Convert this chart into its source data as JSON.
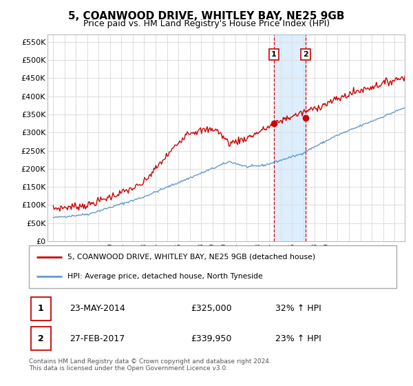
{
  "title": "5, COANWOOD DRIVE, WHITLEY BAY, NE25 9GB",
  "subtitle": "Price paid vs. HM Land Registry's House Price Index (HPI)",
  "ylabel_ticks": [
    "£0",
    "£50K",
    "£100K",
    "£150K",
    "£200K",
    "£250K",
    "£300K",
    "£350K",
    "£400K",
    "£450K",
    "£500K",
    "£550K"
  ],
  "ytick_vals": [
    0,
    50000,
    100000,
    150000,
    200000,
    250000,
    300000,
    350000,
    400000,
    450000,
    500000,
    550000
  ],
  "ylim": [
    0,
    570000
  ],
  "sale1": {
    "date_num": 2014.39,
    "price": 325000,
    "label": "1",
    "date_str": "23-MAY-2014",
    "pct": "32% ↑ HPI"
  },
  "sale2": {
    "date_num": 2017.16,
    "price": 339950,
    "label": "2",
    "date_str": "27-FEB-2017",
    "pct": "23% ↑ HPI"
  },
  "legend_line1": "5, COANWOOD DRIVE, WHITLEY BAY, NE25 9GB (detached house)",
  "legend_line2": "HPI: Average price, detached house, North Tyneside",
  "footnote": "Contains HM Land Registry data © Crown copyright and database right 2024.\nThis data is licensed under the Open Government Licence v3.0.",
  "table_row1": [
    "1",
    "23-MAY-2014",
    "£325,000",
    "32% ↑ HPI"
  ],
  "table_row2": [
    "2",
    "27-FEB-2017",
    "£339,950",
    "23% ↑ HPI"
  ],
  "red_color": "#cc0000",
  "blue_color": "#6699cc",
  "highlight_color": "#ddeeff",
  "background_color": "#ffffff",
  "grid_color": "#dddddd",
  "start_year": 1995,
  "end_year": 2026,
  "xlim_left": 1994.5,
  "xlim_right": 2025.9
}
